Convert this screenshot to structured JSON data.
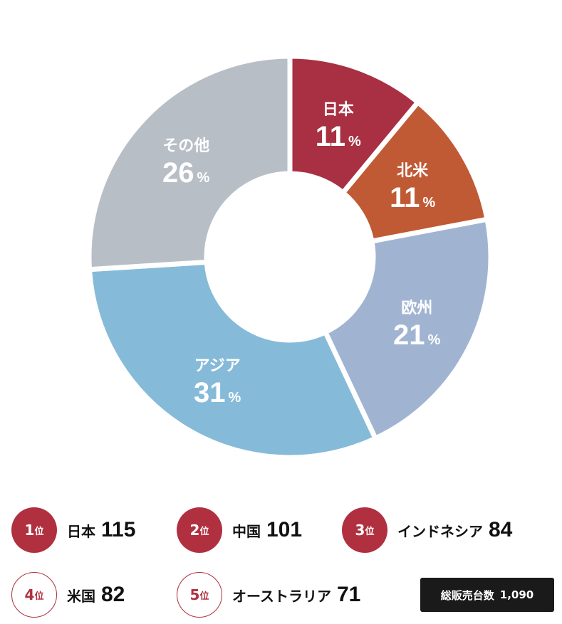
{
  "chart_data": {
    "type": "pie",
    "donut": true,
    "categories": [
      "日本",
      "北米",
      "欧州",
      "アジア",
      "その他"
    ],
    "values": [
      11,
      11,
      21,
      31,
      26
    ],
    "unit": "%",
    "colors": [
      "#a83042",
      "#c05a35",
      "#a0b4d2",
      "#86bad9",
      "#b8bec6"
    ]
  },
  "ranking": [
    {
      "rank": "1",
      "suffix": "位",
      "country": "日本",
      "value": "115"
    },
    {
      "rank": "2",
      "suffix": "位",
      "country": "中国",
      "value": "101"
    },
    {
      "rank": "3",
      "suffix": "位",
      "country": "インドネシア",
      "value": "84"
    },
    {
      "rank": "4",
      "suffix": "位",
      "country": "米国",
      "value": "82"
    },
    {
      "rank": "5",
      "suffix": "位",
      "country": "オーストラリア",
      "value": "71"
    }
  ],
  "total": {
    "label": "総販売台数",
    "value": "1,090"
  }
}
